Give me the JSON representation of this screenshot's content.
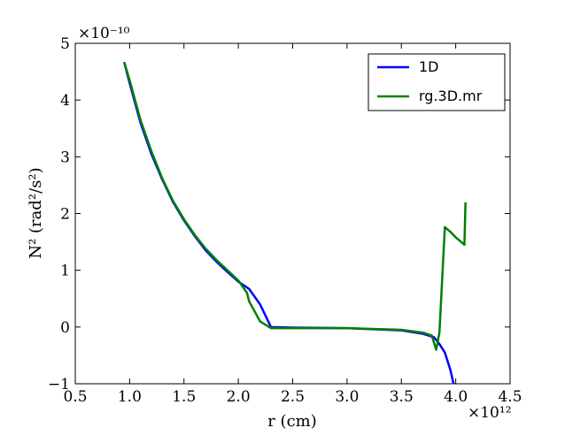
{
  "chart_data": {
    "type": "line",
    "xlabel": "r (cm)",
    "ylabel": "N² (rad²/s²)",
    "x_multiplier": "×10¹²",
    "y_multiplier": "×10⁻¹⁰",
    "xlim": [
      0.5,
      4.5
    ],
    "ylim": [
      -1,
      5
    ],
    "x_ticks": [
      "0.5",
      "1.0",
      "1.5",
      "2.0",
      "2.5",
      "3.0",
      "3.5",
      "4.0",
      "4.5"
    ],
    "y_ticks": [
      "−1",
      "0",
      "1",
      "2",
      "3",
      "4",
      "5"
    ],
    "grid": false,
    "legend_position": "top-right",
    "series": [
      {
        "name": "1D",
        "color": "#0000ff",
        "points": [
          [
            0.95,
            4.67
          ],
          [
            1.0,
            4.3
          ],
          [
            1.1,
            3.6
          ],
          [
            1.2,
            3.05
          ],
          [
            1.3,
            2.6
          ],
          [
            1.4,
            2.2
          ],
          [
            1.5,
            1.88
          ],
          [
            1.6,
            1.6
          ],
          [
            1.7,
            1.35
          ],
          [
            1.8,
            1.15
          ],
          [
            1.9,
            0.97
          ],
          [
            2.0,
            0.8
          ],
          [
            2.1,
            0.67
          ],
          [
            2.2,
            0.4
          ],
          [
            2.3,
            0.0
          ],
          [
            2.5,
            -0.01
          ],
          [
            3.0,
            -0.02
          ],
          [
            3.5,
            -0.06
          ],
          [
            3.7,
            -0.12
          ],
          [
            3.8,
            -0.18
          ],
          [
            3.85,
            -0.3
          ],
          [
            3.9,
            -0.45
          ],
          [
            3.95,
            -0.75
          ],
          [
            3.98,
            -1.0
          ]
        ]
      },
      {
        "name": "rg.3D.mr",
        "color": "#008000",
        "points": [
          [
            0.95,
            4.67
          ],
          [
            1.0,
            4.35
          ],
          [
            1.1,
            3.65
          ],
          [
            1.2,
            3.1
          ],
          [
            1.3,
            2.62
          ],
          [
            1.4,
            2.22
          ],
          [
            1.5,
            1.9
          ],
          [
            1.6,
            1.62
          ],
          [
            1.7,
            1.38
          ],
          [
            1.8,
            1.18
          ],
          [
            1.9,
            1.0
          ],
          [
            2.0,
            0.82
          ],
          [
            2.08,
            0.6
          ],
          [
            2.1,
            0.45
          ],
          [
            2.2,
            0.1
          ],
          [
            2.3,
            -0.02
          ],
          [
            2.5,
            -0.02
          ],
          [
            3.0,
            -0.02
          ],
          [
            3.5,
            -0.05
          ],
          [
            3.7,
            -0.1
          ],
          [
            3.78,
            -0.15
          ],
          [
            3.82,
            -0.4
          ],
          [
            3.85,
            -0.1
          ],
          [
            3.9,
            1.76
          ],
          [
            3.95,
            1.68
          ],
          [
            4.0,
            1.58
          ],
          [
            4.05,
            1.5
          ],
          [
            4.08,
            1.45
          ],
          [
            4.09,
            2.2
          ]
        ]
      }
    ]
  }
}
